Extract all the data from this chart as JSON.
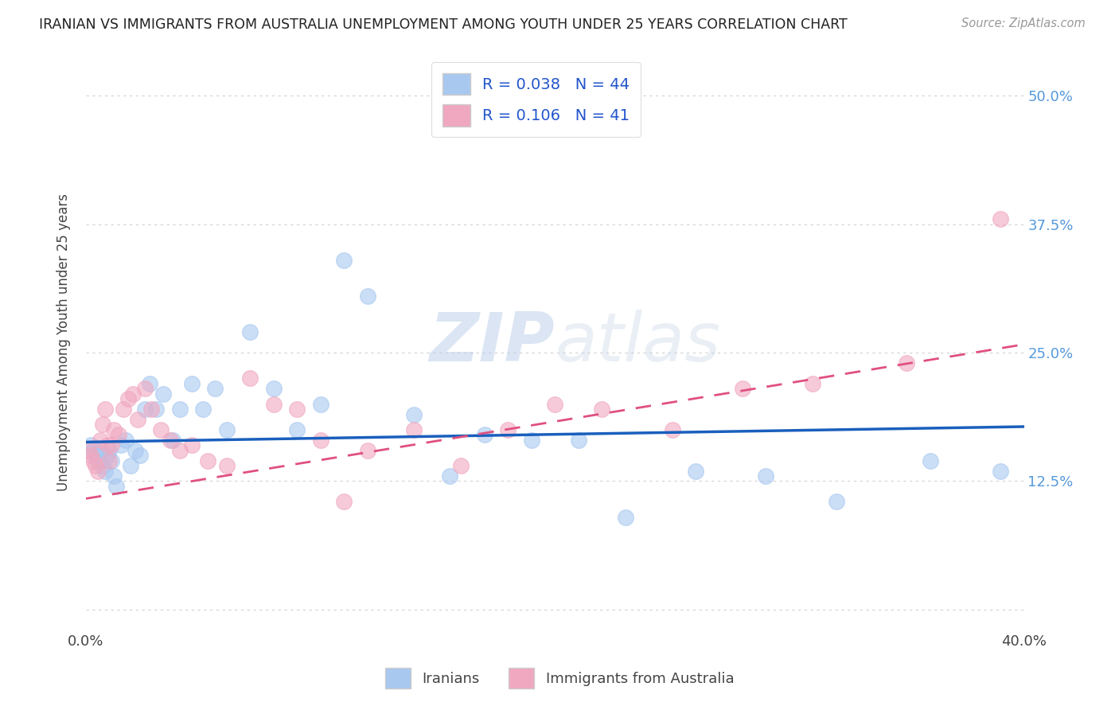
{
  "title": "IRANIAN VS IMMIGRANTS FROM AUSTRALIA UNEMPLOYMENT AMONG YOUTH UNDER 25 YEARS CORRELATION CHART",
  "source": "Source: ZipAtlas.com",
  "ylabel": "Unemployment Among Youth under 25 years",
  "xlim": [
    0,
    0.4
  ],
  "ylim": [
    -0.02,
    0.54
  ],
  "xticks": [
    0.0,
    0.05,
    0.1,
    0.15,
    0.2,
    0.25,
    0.3,
    0.35,
    0.4
  ],
  "yticks": [
    0.0,
    0.125,
    0.25,
    0.375,
    0.5
  ],
  "right_ytick_labels": [
    "",
    "12.5%",
    "25.0%",
    "37.5%",
    "50.0%"
  ],
  "legend_iranians": "R = 0.038   N = 44",
  "legend_australia": "R = 0.106   N = 41",
  "iranians_color": "#a8c8f0",
  "australia_color": "#f0a8c0",
  "trend_iranians_color": "#1a5fbd",
  "trend_australia_color": "#e05080",
  "background_color": "#ffffff",
  "watermark_color": "#d8e8f8",
  "iranians_x": [
    0.002,
    0.003,
    0.004,
    0.005,
    0.006,
    0.007,
    0.008,
    0.009,
    0.01,
    0.011,
    0.012,
    0.013,
    0.015,
    0.017,
    0.019,
    0.021,
    0.023,
    0.025,
    0.027,
    0.03,
    0.033,
    0.037,
    0.04,
    0.045,
    0.05,
    0.055,
    0.06,
    0.07,
    0.08,
    0.09,
    0.1,
    0.11,
    0.12,
    0.14,
    0.155,
    0.17,
    0.19,
    0.21,
    0.23,
    0.26,
    0.29,
    0.32,
    0.36,
    0.39
  ],
  "iranians_y": [
    0.16,
    0.155,
    0.15,
    0.145,
    0.155,
    0.14,
    0.135,
    0.15,
    0.155,
    0.145,
    0.13,
    0.12,
    0.16,
    0.165,
    0.14,
    0.155,
    0.15,
    0.195,
    0.22,
    0.195,
    0.21,
    0.165,
    0.195,
    0.22,
    0.195,
    0.215,
    0.175,
    0.27,
    0.215,
    0.175,
    0.2,
    0.34,
    0.305,
    0.19,
    0.13,
    0.17,
    0.165,
    0.165,
    0.09,
    0.135,
    0.13,
    0.105,
    0.145,
    0.135
  ],
  "australia_x": [
    0.001,
    0.002,
    0.003,
    0.004,
    0.005,
    0.006,
    0.007,
    0.008,
    0.009,
    0.01,
    0.011,
    0.012,
    0.014,
    0.016,
    0.018,
    0.02,
    0.022,
    0.025,
    0.028,
    0.032,
    0.036,
    0.04,
    0.045,
    0.052,
    0.06,
    0.07,
    0.08,
    0.09,
    0.1,
    0.11,
    0.12,
    0.14,
    0.16,
    0.18,
    0.2,
    0.22,
    0.25,
    0.28,
    0.31,
    0.35,
    0.39
  ],
  "australia_y": [
    0.155,
    0.15,
    0.145,
    0.14,
    0.135,
    0.165,
    0.18,
    0.195,
    0.16,
    0.145,
    0.16,
    0.175,
    0.17,
    0.195,
    0.205,
    0.21,
    0.185,
    0.215,
    0.195,
    0.175,
    0.165,
    0.155,
    0.16,
    0.145,
    0.14,
    0.225,
    0.2,
    0.195,
    0.165,
    0.105,
    0.155,
    0.175,
    0.14,
    0.175,
    0.2,
    0.195,
    0.175,
    0.215,
    0.22,
    0.24,
    0.38
  ],
  "trend_iranians_x0": 0.0,
  "trend_iranians_x1": 0.4,
  "trend_iranians_y0": 0.163,
  "trend_iranians_y1": 0.178,
  "trend_australia_x0": 0.0,
  "trend_australia_x1": 0.4,
  "trend_australia_y0": 0.108,
  "trend_australia_y1": 0.258
}
